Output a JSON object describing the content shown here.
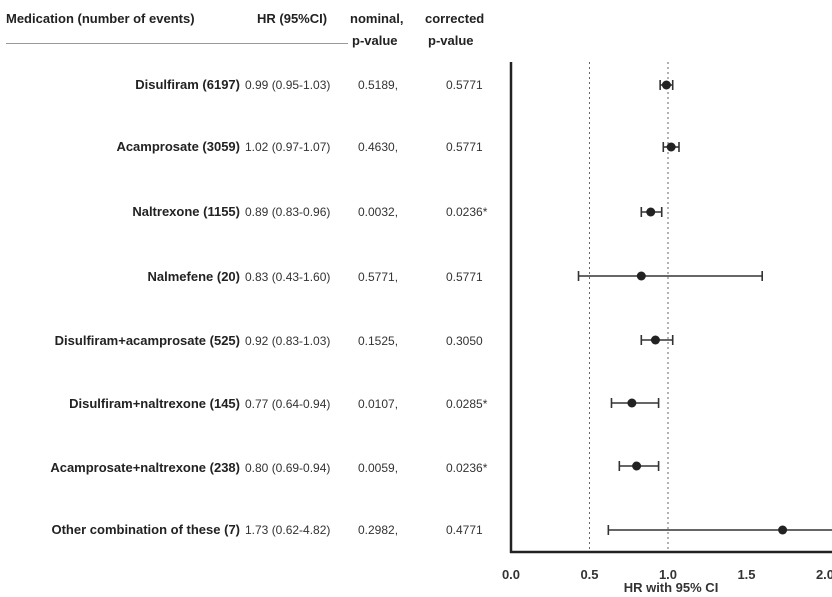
{
  "header": {
    "col1": "Medication (number of events)",
    "col2": "HR (95%CI)",
    "col3_line1": "nominal,",
    "col3_line2": "p-value",
    "col4_line1": "corrected",
    "col4_line2": "p-value"
  },
  "chart_data": {
    "type": "forest",
    "xlabel": "HR with 95% CI",
    "xlim": [
      0.0,
      2.0
    ],
    "xticks": [
      "0.0",
      "0.5",
      "1.0",
      "1.5",
      "2.0"
    ],
    "reference_lines": [
      0.5,
      1.0
    ],
    "rows": [
      {
        "label": "Disulfiram (6197)",
        "hr": 0.99,
        "lo": 0.95,
        "hi": 1.03,
        "hr_text": "0.99 (0.95-1.03)",
        "p_nominal": "0.5189,",
        "p_corrected": "0.5771"
      },
      {
        "label": "Acamprosate (3059)",
        "hr": 1.02,
        "lo": 0.97,
        "hi": 1.07,
        "hr_text": "1.02 (0.97-1.07)",
        "p_nominal": "0.4630,",
        "p_corrected": "0.5771"
      },
      {
        "label": "Naltrexone (1155)",
        "hr": 0.89,
        "lo": 0.83,
        "hi": 0.96,
        "hr_text": "0.89 (0.83-0.96)",
        "p_nominal": "0.0032,",
        "p_corrected": "0.0236*"
      },
      {
        "label": "Nalmefene (20)",
        "hr": 0.83,
        "lo": 0.43,
        "hi": 1.6,
        "hr_text": "0.83 (0.43-1.60)",
        "p_nominal": "0.5771,",
        "p_corrected": "0.5771"
      },
      {
        "label": "Disulfiram+acamprosate (525)",
        "hr": 0.92,
        "lo": 0.83,
        "hi": 1.03,
        "hr_text": "0.92 (0.83-1.03)",
        "p_nominal": "0.1525,",
        "p_corrected": "0.3050"
      },
      {
        "label": "Disulfiram+naltrexone (145)",
        "hr": 0.77,
        "lo": 0.64,
        "hi": 0.94,
        "hr_text": "0.77 (0.64-0.94)",
        "p_nominal": "0.0107,",
        "p_corrected": "0.0285*"
      },
      {
        "label": "Acamprosate+naltrexone (238)",
        "hr": 0.8,
        "lo": 0.69,
        "hi": 0.94,
        "hr_text": "0.80 (0.69-0.94)",
        "p_nominal": "0.0059,",
        "p_corrected": "0.0236*"
      },
      {
        "label": "Other combination of these (7)",
        "hr": 1.73,
        "lo": 0.62,
        "hi": 4.82,
        "hr_text": "1.73 (0.62-4.82)",
        "p_nominal": "0.2982,",
        "p_corrected": "0.4771"
      }
    ]
  }
}
